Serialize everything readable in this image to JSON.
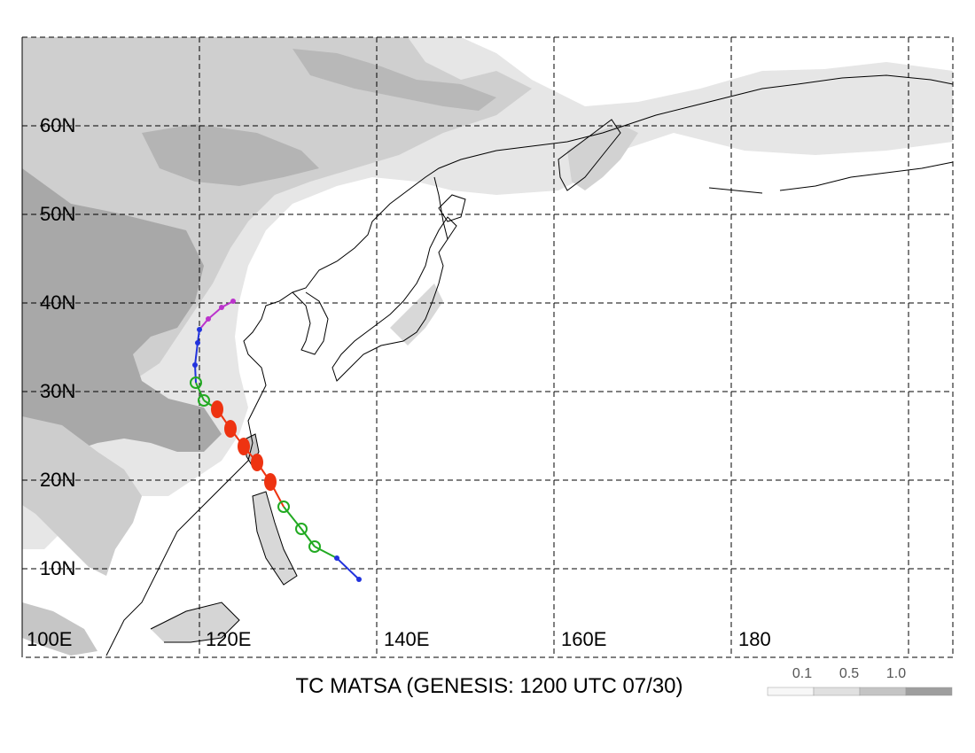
{
  "map": {
    "title": "TC MATSA (GENESIS: 1200 UTC 07/30)",
    "lat_labels": [
      "60N",
      "50N",
      "40N",
      "30N",
      "20N",
      "10N"
    ],
    "lon_labels": [
      "100E",
      "120E",
      "140E",
      "160E",
      "180"
    ],
    "extent": {
      "lon_min": 100,
      "lon_max": 205,
      "lat_min": 0,
      "lat_max": 70
    },
    "gridlines": "dashed",
    "legend": {
      "labels": [
        "0.1",
        "0.5",
        "1.0"
      ],
      "colors": [
        "#f7f7f7",
        "#e0e0e0",
        "#c4c4c4",
        "#9e9e9e"
      ]
    },
    "track": {
      "name": "MATSA",
      "genesis": "1200 UTC 07/30",
      "color_key": {
        "depression": "#2233dd",
        "tropical_storm": "#22aa22",
        "typhoon": "#ee3311",
        "extratropical": "#bb33cc"
      },
      "points": [
        {
          "lon": 138.0,
          "lat": 8.8,
          "stage": "depression"
        },
        {
          "lon": 135.5,
          "lat": 11.2,
          "stage": "depression"
        },
        {
          "lon": 133.0,
          "lat": 12.5,
          "stage": "tropical_storm"
        },
        {
          "lon": 131.5,
          "lat": 14.5,
          "stage": "tropical_storm"
        },
        {
          "lon": 129.5,
          "lat": 17.0,
          "stage": "tropical_storm"
        },
        {
          "lon": 128.0,
          "lat": 19.8,
          "stage": "typhoon"
        },
        {
          "lon": 126.5,
          "lat": 22.0,
          "stage": "typhoon"
        },
        {
          "lon": 125.0,
          "lat": 23.8,
          "stage": "typhoon"
        },
        {
          "lon": 123.5,
          "lat": 25.8,
          "stage": "typhoon"
        },
        {
          "lon": 122.0,
          "lat": 28.0,
          "stage": "typhoon"
        },
        {
          "lon": 120.5,
          "lat": 29.0,
          "stage": "tropical_storm"
        },
        {
          "lon": 119.6,
          "lat": 31.0,
          "stage": "tropical_storm"
        },
        {
          "lon": 119.5,
          "lat": 33.0,
          "stage": "depression"
        },
        {
          "lon": 119.8,
          "lat": 35.5,
          "stage": "depression"
        },
        {
          "lon": 120.0,
          "lat": 37.0,
          "stage": "depression"
        },
        {
          "lon": 121.0,
          "lat": 38.2,
          "stage": "extratropical"
        },
        {
          "lon": 122.5,
          "lat": 39.5,
          "stage": "extratropical"
        },
        {
          "lon": 123.8,
          "lat": 40.2,
          "stage": "extratropical"
        }
      ]
    }
  }
}
